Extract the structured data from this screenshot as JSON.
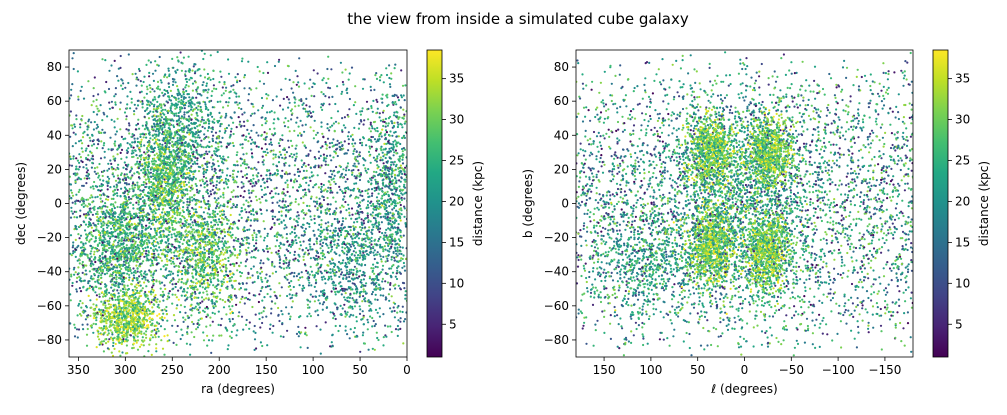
{
  "figure": {
    "title": "the view from inside a simulated cube galaxy"
  },
  "chart_data": [
    {
      "type": "scatter",
      "xlabel": "ra (degrees)",
      "ylabel": "dec (degrees)",
      "xlim": [
        360,
        0
      ],
      "ylim": [
        -90,
        90
      ],
      "xticks": [
        350,
        300,
        250,
        200,
        150,
        100,
        50,
        0
      ],
      "yticks": [
        -80,
        -60,
        -40,
        -20,
        0,
        20,
        40,
        60,
        80
      ],
      "xtick_labels": [
        "350",
        "300",
        "250",
        "200",
        "150",
        "100",
        "50",
        "0"
      ],
      "ytick_labels": [
        "−80",
        "−60",
        "−40",
        "−20",
        "0",
        "20",
        "40",
        "60",
        "80"
      ],
      "colorbar": {
        "label": "distance (kpc)",
        "colormap": "viridis",
        "range": [
          1,
          38.5
        ],
        "ticks": [
          5,
          10,
          15,
          20,
          25,
          30,
          35
        ],
        "tick_labels": [
          "5",
          "10",
          "15",
          "20",
          "25",
          "30",
          "35"
        ]
      },
      "point_count_approx": 9000,
      "clusters": [
        {
          "x": 305,
          "y": -25,
          "sx": 22,
          "sy": 18,
          "dist": 26,
          "weight": 0.12
        },
        {
          "x": 300,
          "y": -68,
          "sx": 18,
          "sy": 8,
          "dist": 32,
          "weight": 0.08
        },
        {
          "x": 258,
          "y": 15,
          "sx": 15,
          "sy": 20,
          "dist": 28,
          "weight": 0.1
        },
        {
          "x": 215,
          "y": -30,
          "sx": 18,
          "sy": 18,
          "dist": 29,
          "weight": 0.08
        },
        {
          "x": 240,
          "y": 45,
          "sx": 25,
          "sy": 20,
          "dist": 22,
          "weight": 0.07
        },
        {
          "x": 15,
          "y": 10,
          "sx": 12,
          "sy": 25,
          "dist": 23,
          "weight": 0.05
        },
        {
          "x": 60,
          "y": -40,
          "sx": 25,
          "sy": 20,
          "dist": 20,
          "weight": 0.05
        }
      ]
    },
    {
      "type": "scatter",
      "xlabel": "ℓ (degrees)",
      "ylabel": "b (degrees)",
      "xlim": [
        180,
        -180
      ],
      "ylim": [
        -90,
        90
      ],
      "xticks": [
        150,
        100,
        50,
        0,
        -50,
        -100,
        -150
      ],
      "yticks": [
        -80,
        -60,
        -40,
        -20,
        0,
        20,
        40,
        60,
        80
      ],
      "xtick_labels": [
        "150",
        "100",
        "50",
        "0",
        "−50",
        "−100",
        "−150"
      ],
      "ytick_labels": [
        "−80",
        "−60",
        "−40",
        "−20",
        "0",
        "20",
        "40",
        "60",
        "80"
      ],
      "colorbar": {
        "label": "distance (kpc)",
        "colormap": "viridis",
        "range": [
          1,
          38.5
        ],
        "ticks": [
          5,
          10,
          15,
          20,
          25,
          30,
          35
        ],
        "tick_labels": [
          "5",
          "10",
          "15",
          "20",
          "25",
          "30",
          "35"
        ]
      },
      "point_count_approx": 9000,
      "clusters": [
        {
          "x": 35,
          "y": 30,
          "sx": 12,
          "sy": 10,
          "dist": 31,
          "weight": 0.09
        },
        {
          "x": -25,
          "y": 30,
          "sx": 12,
          "sy": 10,
          "dist": 31,
          "weight": 0.09
        },
        {
          "x": 35,
          "y": -25,
          "sx": 12,
          "sy": 12,
          "dist": 31,
          "weight": 0.09
        },
        {
          "x": -25,
          "y": -28,
          "sx": 12,
          "sy": 12,
          "dist": 31,
          "weight": 0.09
        },
        {
          "x": 5,
          "y": 0,
          "sx": 45,
          "sy": 35,
          "dist": 23,
          "weight": 0.18
        },
        {
          "x": 110,
          "y": -35,
          "sx": 25,
          "sy": 15,
          "dist": 22,
          "weight": 0.05
        }
      ]
    }
  ]
}
